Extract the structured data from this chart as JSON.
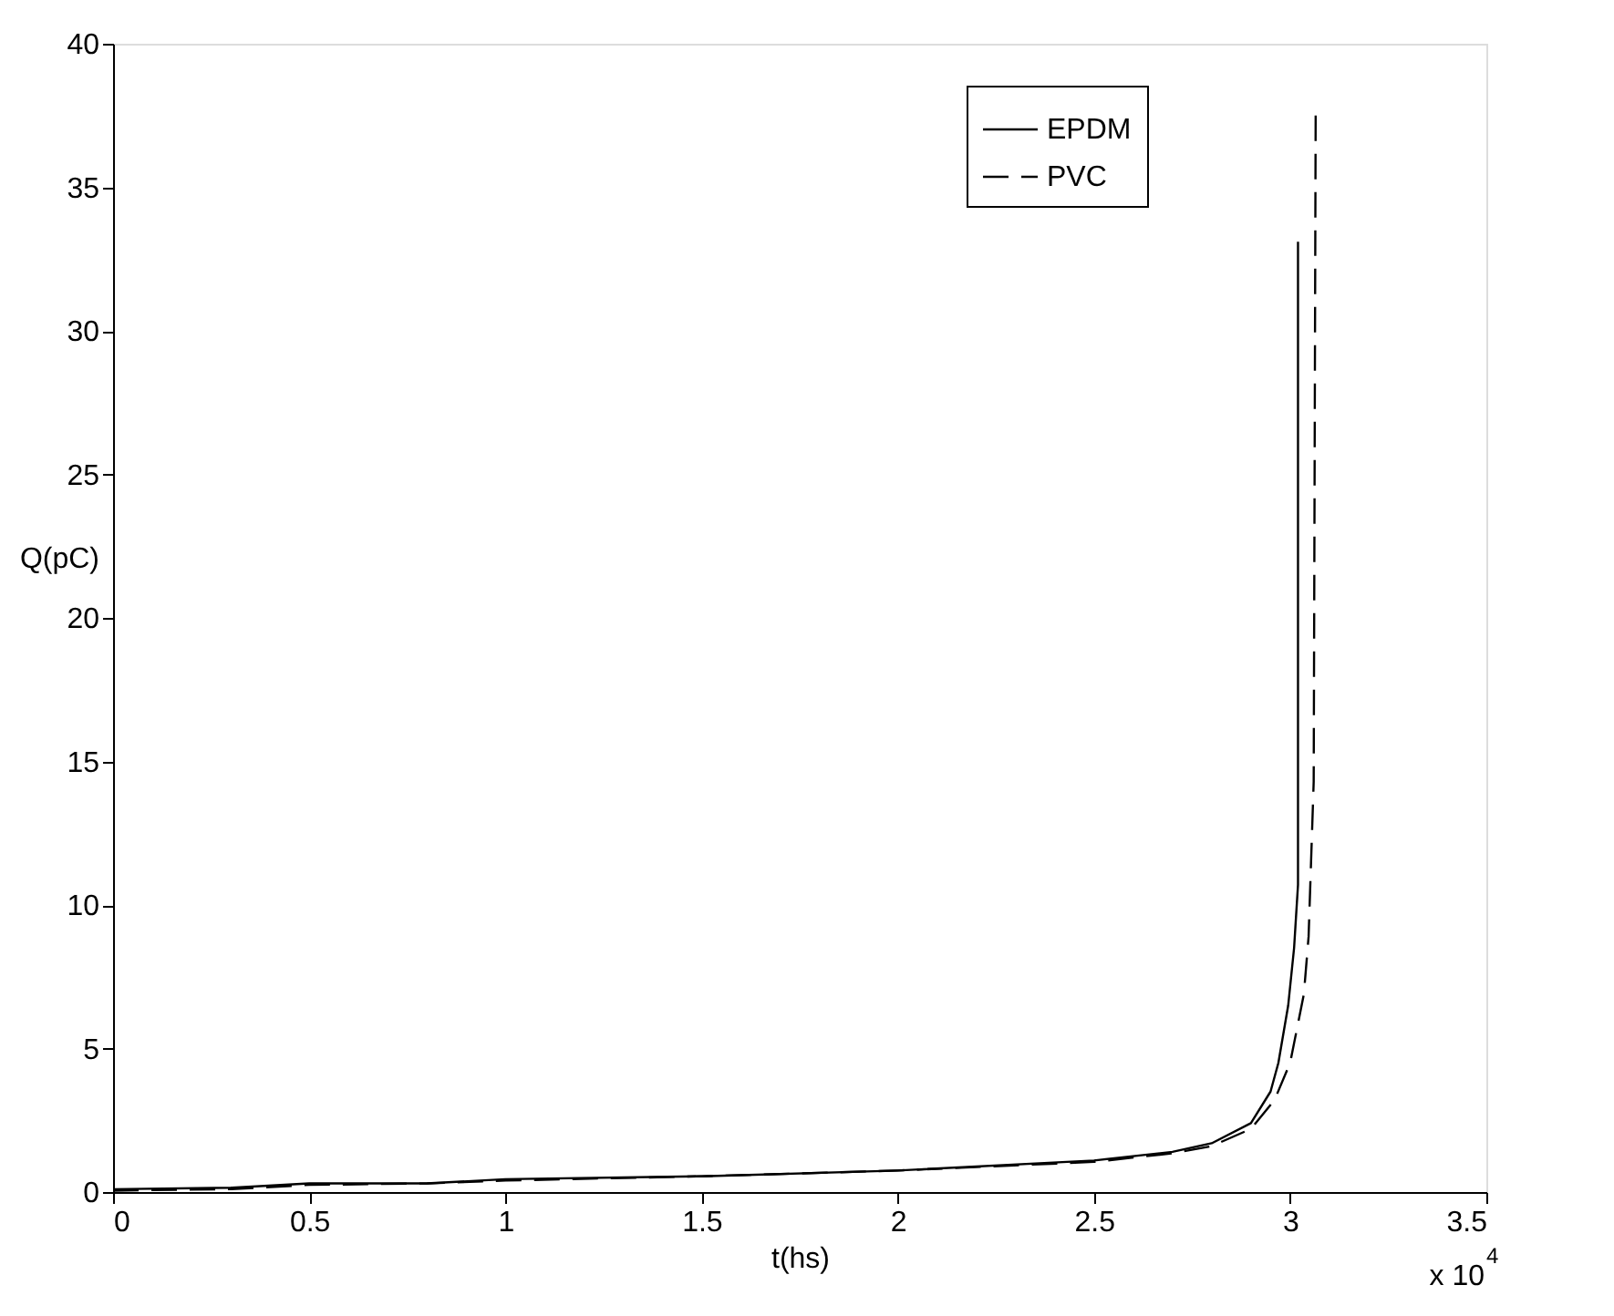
{
  "chart_data": {
    "type": "line",
    "xlabel": "t(hs)",
    "ylabel": "Q(pC)",
    "annotations": [
      "x 10$^{4}$"
    ],
    "xlim": [
      0,
      3.5
    ],
    "xticks": [
      0,
      0.5,
      1,
      1.5,
      2,
      2.5,
      3,
      3.5
    ],
    "ylim": [
      0,
      40
    ],
    "yticks": [
      0,
      5,
      10,
      15,
      20,
      25,
      30,
      35,
      40
    ],
    "grid": false,
    "legend": "top right",
    "marker": "none",
    "series": [
      {
        "name": "EPDM",
        "color": "#000000",
        "line_style": "solid",
        "x": [
          0,
          0.3,
          0.5,
          0.8,
          1,
          1.5,
          2,
          2.5,
          2.7,
          2.8,
          2.9,
          2.95,
          2.97,
          2.995,
          3.01,
          3.02,
          3.02
        ],
        "values": [
          0.1,
          0.15,
          0.3,
          0.3,
          0.45,
          0.55,
          0.75,
          1.1,
          1.4,
          1.7,
          2.4,
          3.5,
          4.5,
          6.5,
          8.5,
          10.7,
          33.1
        ]
      },
      {
        "name": "PVC",
        "color": "#000000",
        "line_style": "dashed",
        "x": [
          0,
          0.3,
          0.5,
          0.8,
          1,
          1.5,
          2,
          2.5,
          2.7,
          2.8,
          2.9,
          2.96,
          3.0,
          3.035,
          3.047,
          3.06,
          3.065
        ],
        "values": [
          0.05,
          0.1,
          0.25,
          0.3,
          0.4,
          0.55,
          0.75,
          1.05,
          1.35,
          1.6,
          2.2,
          3.2,
          4.5,
          6.9,
          8.9,
          14.3,
          37.5
        ]
      }
    ]
  }
}
